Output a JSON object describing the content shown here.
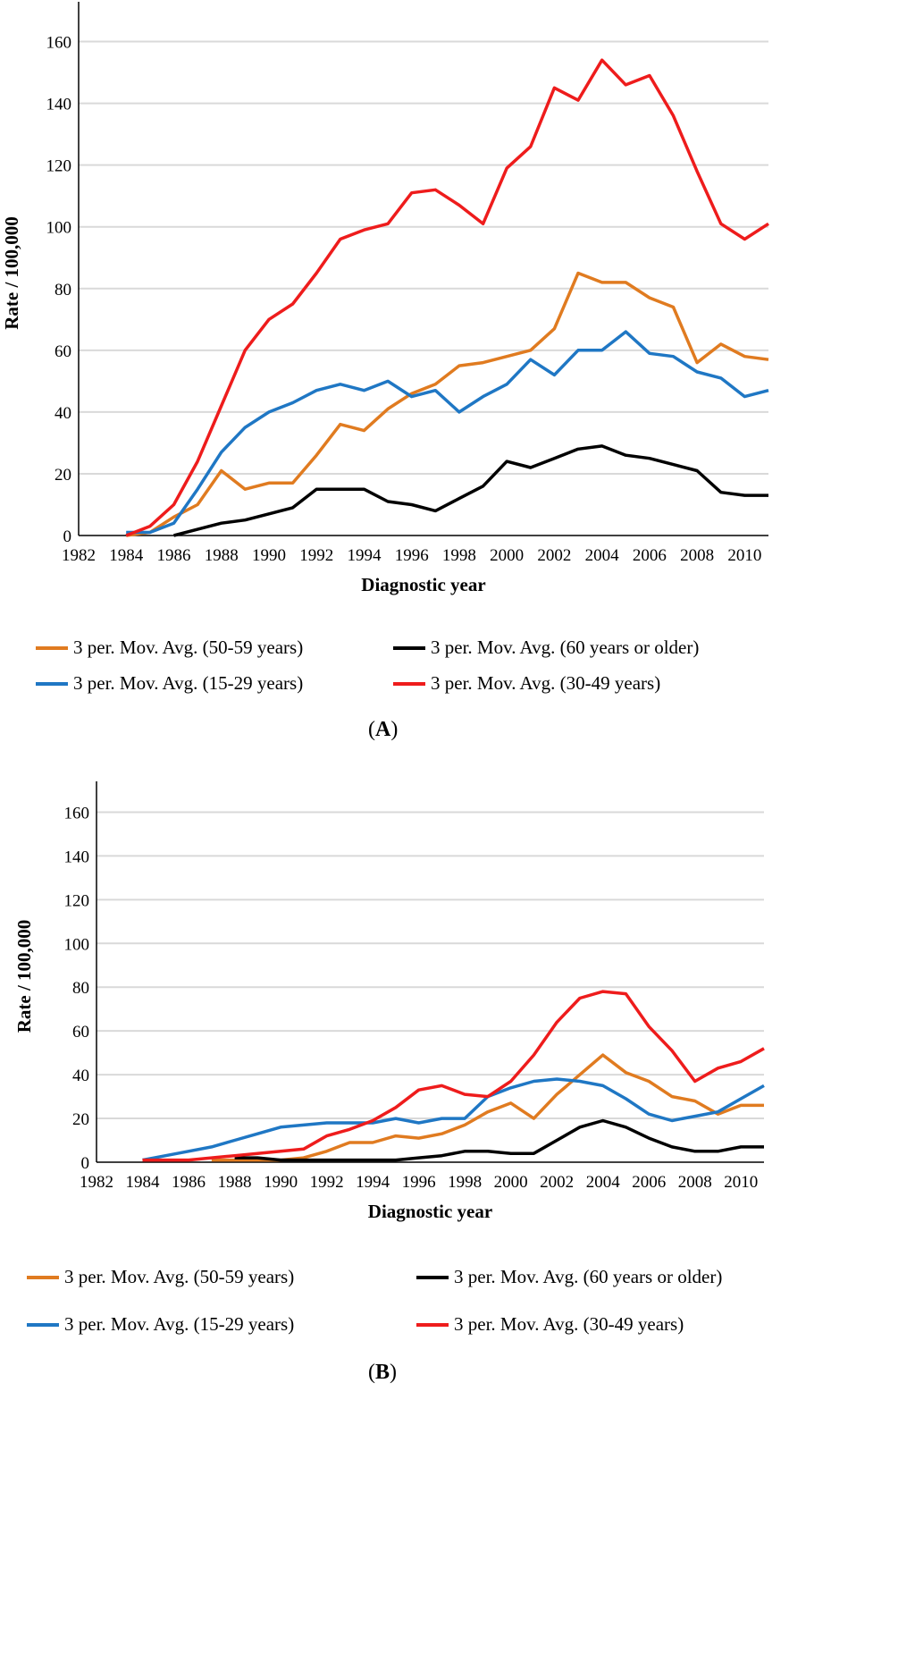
{
  "chart_data": [
    {
      "type": "line",
      "panel_label": "A",
      "title": "",
      "xlabel": "Diagnostic year",
      "ylabel": "Rate / 100,000",
      "ylim": [
        0,
        170
      ],
      "yticks": [
        0,
        20,
        40,
        60,
        80,
        100,
        120,
        140,
        160
      ],
      "xlim": [
        1982,
        2011
      ],
      "xticks": [
        "1982",
        "1984",
        "1986",
        "1988",
        "1990",
        "1992",
        "1994",
        "1996",
        "1998",
        "2000",
        "2002",
        "2004",
        "2006",
        "2008",
        "2010"
      ],
      "grid": true,
      "legend_position": "bottom",
      "x": [
        1984,
        1985,
        1986,
        1987,
        1988,
        1989,
        1990,
        1991,
        1992,
        1993,
        1994,
        1995,
        1996,
        1997,
        1998,
        1999,
        2000,
        2001,
        2002,
        2003,
        2004,
        2005,
        2006,
        2007,
        2008,
        2009,
        2010,
        2011
      ],
      "series": [
        {
          "name": "3 per. Mov. Avg. (50-59 years)",
          "color": "#E07B20",
          "values": [
            0,
            1,
            6,
            10,
            21,
            15,
            17,
            17,
            26,
            36,
            34,
            41,
            46,
            49,
            55,
            56,
            58,
            60,
            67,
            85,
            82,
            82,
            77,
            74,
            56,
            62,
            58,
            57
          ]
        },
        {
          "name": "3 per. Mov. Avg. (60 years or older)",
          "color": "#000000",
          "values": [
            null,
            null,
            0,
            2,
            4,
            5,
            7,
            9,
            15,
            15,
            15,
            11,
            10,
            8,
            12,
            16,
            24,
            22,
            25,
            28,
            29,
            26,
            25,
            23,
            21,
            14,
            13,
            13
          ]
        },
        {
          "name": "3 per. Mov. Avg. (15-29 years)",
          "color": "#1F77C4",
          "values": [
            1,
            1,
            4,
            15,
            27,
            35,
            40,
            43,
            47,
            49,
            47,
            50,
            45,
            47,
            40,
            45,
            49,
            57,
            52,
            60,
            60,
            66,
            59,
            58,
            53,
            51,
            45,
            47
          ]
        },
        {
          "name": "3 per. Mov. Avg. (30-49 years)",
          "color": "#EE1C1C",
          "values": [
            0,
            3,
            10,
            24,
            42,
            60,
            70,
            75,
            85,
            96,
            99,
            101,
            111,
            112,
            107,
            101,
            119,
            126,
            145,
            141,
            154,
            146,
            149,
            136,
            118,
            101,
            96,
            101
          ]
        }
      ]
    },
    {
      "type": "line",
      "panel_label": "B",
      "title": "",
      "xlabel": "Diagnostic year",
      "ylabel": "Rate / 100,000",
      "ylim": [
        0,
        170
      ],
      "yticks": [
        0,
        20,
        40,
        60,
        80,
        100,
        120,
        140,
        160
      ],
      "xlim": [
        1982,
        2011
      ],
      "xticks": [
        "1982",
        "1984",
        "1986",
        "1988",
        "1990",
        "1992",
        "1994",
        "1996",
        "1998",
        "2000",
        "2002",
        "2004",
        "2006",
        "2008",
        "2010"
      ],
      "grid": true,
      "legend_position": "bottom",
      "x": [
        1984,
        1985,
        1986,
        1987,
        1988,
        1989,
        1990,
        1991,
        1992,
        1993,
        1994,
        1995,
        1996,
        1997,
        1998,
        1999,
        2000,
        2001,
        2002,
        2003,
        2004,
        2005,
        2006,
        2007,
        2008,
        2009,
        2010,
        2011
      ],
      "series": [
        {
          "name": "3 per. Mov. Avg. (50-59 years)",
          "color": "#E07B20",
          "values": [
            null,
            null,
            null,
            1,
            1,
            1,
            1,
            2,
            5,
            9,
            9,
            12,
            11,
            13,
            17,
            23,
            27,
            20,
            31,
            40,
            49,
            41,
            37,
            30,
            28,
            22,
            26,
            26
          ]
        },
        {
          "name": "3 per. Mov. Avg. (60 years or older)",
          "color": "#000000",
          "values": [
            null,
            null,
            null,
            null,
            2,
            2,
            1,
            1,
            1,
            1,
            1,
            1,
            2,
            3,
            5,
            5,
            4,
            4,
            10,
            16,
            19,
            16,
            11,
            7,
            5,
            5,
            7,
            7
          ]
        },
        {
          "name": "3 per. Mov. Avg. (15-29 years)",
          "color": "#1F77C4",
          "values": [
            1,
            3,
            5,
            7,
            10,
            13,
            16,
            17,
            18,
            18,
            18,
            20,
            18,
            20,
            20,
            30,
            34,
            37,
            38,
            37,
            35,
            29,
            22,
            19,
            21,
            23,
            29,
            35
          ]
        },
        {
          "name": "3 per. Mov. Avg. (30-49 years)",
          "color": "#EE1C1C",
          "values": [
            1,
            1,
            1,
            2,
            3,
            4,
            5,
            6,
            12,
            15,
            19,
            25,
            33,
            35,
            31,
            30,
            37,
            49,
            64,
            75,
            78,
            77,
            62,
            51,
            37,
            43,
            46,
            52
          ]
        }
      ]
    }
  ],
  "panels": [
    {
      "label": "A"
    },
    {
      "label": "B"
    }
  ]
}
